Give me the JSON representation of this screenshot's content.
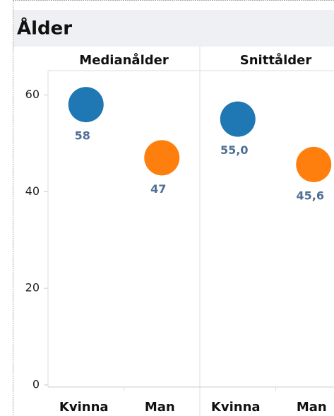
{
  "chart_data": {
    "type": "dot",
    "title": "Ålder",
    "categories": [
      "Kvinna",
      "Man"
    ],
    "colors": [
      "#1f77b4",
      "#ff7f0e"
    ],
    "series": [
      {
        "name": "Medianålder",
        "values": [
          58,
          47
        ],
        "value_labels": [
          "58",
          "47"
        ]
      },
      {
        "name": "Snittålder",
        "values": [
          55.0,
          45.6
        ],
        "value_labels": [
          "55,0",
          "45,6"
        ]
      }
    ],
    "ylim": [
      0,
      64
    ],
    "yticks": [
      0,
      20,
      40,
      60
    ]
  }
}
